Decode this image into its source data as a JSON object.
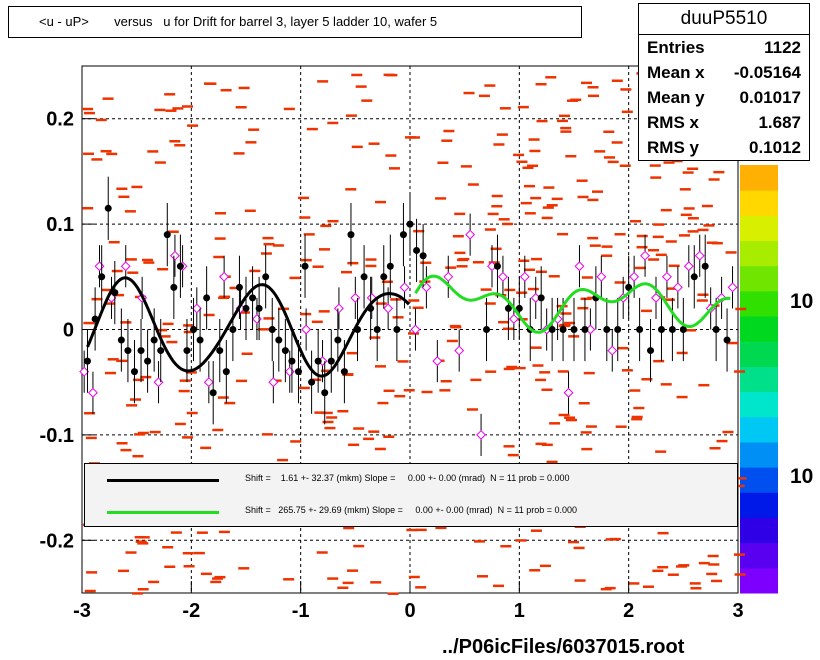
{
  "title": "<u - uP>       versus   u for Drift for barrel 3, layer 5 ladder 10, wafer 5",
  "stats": {
    "name": "duuP5510",
    "rows": [
      {
        "label": "Entries",
        "value": "1122"
      },
      {
        "label": "Mean x",
        "value": "-0.05164"
      },
      {
        "label": "Mean y",
        "value": "0.01017"
      },
      {
        "label": "RMS x",
        "value": "1.687"
      },
      {
        "label": "RMS y",
        "value": "0.1012"
      }
    ]
  },
  "legend": [
    {
      "color": "#000000",
      "text": "Shift =    1.61 +- 32.37 (mkm) Slope =     0.00 +- 0.00 (mrad)  N = 11 prob = 0.000"
    },
    {
      "color": "#22dd22",
      "text": "Shift =   265.75 +- 29.69 (mkm) Slope =     0.00 +- 0.00 (mrad)  N = 11 prob = 0.000"
    }
  ],
  "footer": "../P06icFiles/6037015.root",
  "palette_labels": [
    "10",
    "10"
  ],
  "colors": {
    "hist": "#ee3300",
    "profile_black": "#000000",
    "profile_magenta": "#ee00ee",
    "fit_black": "#000000",
    "fit_green": "#22dd22"
  },
  "chart_data": {
    "type": "scatter",
    "xlim": [
      -3,
      3
    ],
    "ylim": [
      -0.25,
      0.25
    ],
    "xticks": [
      -3,
      -2,
      -1,
      0,
      1,
      2,
      3
    ],
    "yticks": [
      -0.2,
      -0.1,
      0,
      0.1,
      0.2
    ],
    "xtick_labels": [
      "-3",
      "-2",
      "-1",
      "0",
      "1",
      "2",
      "3"
    ],
    "ytick_labels": [
      "-0.2",
      "-0.1",
      "0",
      "0.1",
      "0.2"
    ],
    "grid": true,
    "profile_black": {
      "x": [
        -2.95,
        -2.88,
        -2.82,
        -2.76,
        -2.7,
        -2.64,
        -2.58,
        -2.52,
        -2.46,
        -2.4,
        -2.34,
        -2.28,
        -2.22,
        -2.16,
        -2.1,
        -2.04,
        -1.98,
        -1.92,
        -1.86,
        -1.8,
        -1.74,
        -1.68,
        -1.62,
        -1.56,
        -1.5,
        -1.44,
        -1.38,
        -1.32,
        -1.26,
        -1.2,
        -1.14,
        -1.08,
        -1.02,
        -0.96,
        -0.9,
        -0.84,
        -0.78,
        -0.72,
        -0.66,
        -0.6,
        -0.54,
        -0.48,
        -0.42,
        -0.36,
        -0.3,
        -0.24,
        -0.18,
        -0.12,
        -0.06,
        0.0,
        0.06,
        0.12,
        0.7,
        0.8,
        0.9,
        1.0,
        1.1,
        1.2,
        1.3,
        1.4,
        1.5,
        1.6,
        1.7,
        1.8,
        1.9,
        2.0,
        2.1,
        2.2,
        2.3,
        2.4,
        2.5,
        2.6,
        2.7,
        2.8,
        2.9
      ],
      "y": [
        -0.03,
        0.01,
        0.05,
        0.115,
        0.035,
        -0.01,
        -0.02,
        -0.04,
        -0.02,
        -0.03,
        -0.01,
        -0.02,
        0.09,
        0.04,
        0.06,
        -0.02,
        0.0,
        -0.01,
        0.03,
        -0.06,
        -0.02,
        -0.04,
        0.0,
        0.04,
        0.02,
        0.03,
        0.02,
        0.05,
        0.0,
        -0.01,
        -0.02,
        -0.03,
        -0.04,
        0.06,
        -0.05,
        -0.03,
        -0.06,
        -0.03,
        -0.01,
        -0.04,
        0.09,
        0.0,
        0.05,
        0.02,
        0.0,
        0.05,
        0.06,
        0.0,
        0.09,
        0.1,
        0.075,
        0.07,
        0.0,
        0.06,
        0.02,
        0.02,
        0.0,
        0.03,
        0.0,
        0.0,
        0.0,
        0.0,
        0.03,
        0.0,
        0.0,
        0.04,
        0.0,
        -0.02,
        0.0,
        0.0,
        0.0,
        0.05,
        0.06,
        0.0,
        -0.01
      ]
    },
    "profile_magenta": {
      "x": [
        -2.98,
        -2.9,
        -2.84,
        -2.73,
        -2.6,
        -2.45,
        -2.3,
        -2.15,
        -2.08,
        -1.95,
        -1.84,
        -1.7,
        -1.55,
        -1.4,
        -1.25,
        -1.1,
        -0.95,
        -0.8,
        -0.65,
        -0.5,
        -0.35,
        -0.2,
        -0.05,
        0.05,
        0.15,
        0.25,
        0.35,
        0.45,
        0.55,
        0.65,
        0.75,
        0.85,
        0.95,
        1.05,
        1.15,
        1.25,
        1.35,
        1.45,
        1.55,
        1.65,
        1.75,
        1.85,
        1.95,
        2.05,
        2.15,
        2.25,
        2.35,
        2.45,
        2.55,
        2.65,
        2.75,
        2.85,
        2.95
      ],
      "y": [
        -0.04,
        -0.06,
        0.06,
        0.03,
        0.06,
        0.03,
        -0.05,
        0.07,
        0.06,
        0.02,
        -0.05,
        0.05,
        0.02,
        0.01,
        -0.05,
        -0.04,
        0.0,
        -0.03,
        0.02,
        0.03,
        0.03,
        0.02,
        0.04,
        0.0,
        0.04,
        -0.03,
        0.05,
        -0.02,
        0.09,
        -0.1,
        0.06,
        0.05,
        0.01,
        0.05,
        0.03,
        0.0,
        0.01,
        -0.06,
        0.06,
        0.0,
        0.05,
        -0.02,
        0.03,
        0.05,
        0.07,
        0.03,
        0.05,
        0.04,
        0.06,
        0.07,
        0.02,
        0.03,
        0.04
      ]
    }
  }
}
